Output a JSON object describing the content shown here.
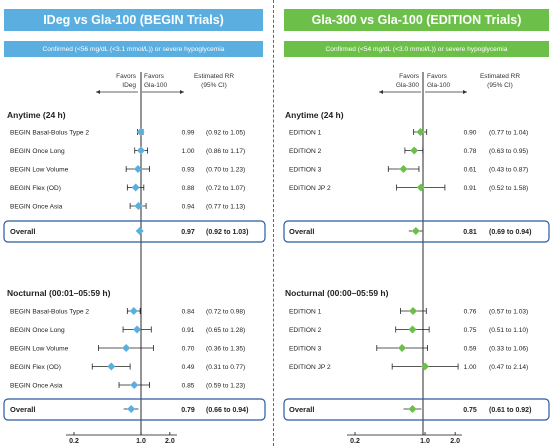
{
  "colors": {
    "left_accent": "#5aaee0",
    "right_accent": "#6cc04a",
    "box": "#2a5aa0"
  },
  "chart_data": [
    {
      "type": "forest",
      "title": "IDeg vs Gla-100 (BEGIN Trials)",
      "subtitle": "Confirmed (<56 mg/dL (<3.1 mmol/L)) or severe hypoglycemia",
      "favors_left": "Favors IDeg",
      "favors_right": "Favors Gla-100",
      "rr_header": "Estimated RR (95% CI)",
      "x_scale": "log",
      "x_ticks": [
        0.2,
        1.0,
        2.0
      ],
      "x_tick_labels": [
        "0.2",
        "1.0",
        "2.0"
      ],
      "marker_shape": "diamond",
      "marker_color": "#5aaee0",
      "sections": [
        {
          "label": "Anytime (24 h)",
          "rows": [
            {
              "label": "BEGIN Basal-Bolus Type 2",
              "rr": 0.99,
              "lo": 0.92,
              "hi": 1.05,
              "text": "0.99",
              "ci": "(0.92 to 1.05)"
            },
            {
              "label": "BEGIN Once Long",
              "rr": 1.0,
              "lo": 0.86,
              "hi": 1.17,
              "text": "1.00",
              "ci": "(0.86 to 1.17)"
            },
            {
              "label": "BEGIN Low Volume",
              "rr": 0.93,
              "lo": 0.7,
              "hi": 1.23,
              "text": "0.93",
              "ci": "(0.70 to 1.23)"
            },
            {
              "label": "BEGIN Flex (OD)",
              "rr": 0.88,
              "lo": 0.72,
              "hi": 1.07,
              "text": "0.88",
              "ci": "(0.72 to 1.07)"
            },
            {
              "label": "BEGIN Once Asia",
              "rr": 0.94,
              "lo": 0.77,
              "hi": 1.13,
              "text": "0.94",
              "ci": "(0.77 to 1.13)"
            }
          ],
          "overall": {
            "label": "Overall",
            "rr": 0.97,
            "lo": 0.92,
            "hi": 1.03,
            "text": "0.97",
            "ci": "(0.92 to 1.03)"
          }
        },
        {
          "label": "Nocturnal (00:01–05:59 h)",
          "rows": [
            {
              "label": "BEGIN Basal-Bolus Type 2",
              "rr": 0.84,
              "lo": 0.72,
              "hi": 0.98,
              "text": "0.84",
              "ci": "(0.72 to 0.98)"
            },
            {
              "label": "BEGIN Once Long",
              "rr": 0.91,
              "lo": 0.65,
              "hi": 1.28,
              "text": "0.91",
              "ci": "(0.65 to 1.28)"
            },
            {
              "label": "BEGIN Low Volume",
              "rr": 0.7,
              "lo": 0.36,
              "hi": 1.35,
              "text": "0.70",
              "ci": "(0.36 to 1.35)"
            },
            {
              "label": "BEGIN Flex (OD)",
              "rr": 0.49,
              "lo": 0.31,
              "hi": 0.77,
              "text": "0.49",
              "ci": "(0.31 to 0.77)"
            },
            {
              "label": "BEGIN Once Asia",
              "rr": 0.85,
              "lo": 0.59,
              "hi": 1.23,
              "text": "0.85",
              "ci": "(0.59 to 1.23)"
            }
          ],
          "overall": {
            "label": "Overall",
            "rr": 0.79,
            "lo": 0.66,
            "hi": 0.94,
            "text": "0.79",
            "ci": "(0.66 to 0.94)"
          }
        }
      ]
    },
    {
      "type": "forest",
      "title": "Gla-300 vs Gla-100 (EDITION Trials)",
      "subtitle": "Confirmed (<54 mg/dL (<3.0 mmol/L)) or severe hypoglycemia",
      "favors_left": "Favors Gla-300",
      "favors_right": "Favors Gla-100",
      "rr_header": "Estimated RR (95% CI)",
      "x_scale": "log",
      "x_ticks": [
        0.2,
        1.0,
        2.0
      ],
      "x_tick_labels": [
        "0.2",
        "1.0",
        "2.0"
      ],
      "marker_shape": "diamond",
      "marker_color": "#6cc04a",
      "sections": [
        {
          "label": "Anytime (24 h)",
          "rows": [
            {
              "label": "EDITION 1",
              "rr": 0.9,
              "lo": 0.77,
              "hi": 1.04,
              "text": "0.90",
              "ci": "(0.77 to 1.04)"
            },
            {
              "label": "EDITION 2",
              "rr": 0.78,
              "lo": 0.63,
              "hi": 0.95,
              "text": "0.78",
              "ci": "(0.63 to 0.95)"
            },
            {
              "label": "EDITION 3",
              "rr": 0.61,
              "lo": 0.43,
              "hi": 0.87,
              "text": "0.61",
              "ci": "(0.43 to 0.87)"
            },
            {
              "label": "EDITION JP 2",
              "rr": 0.91,
              "lo": 0.52,
              "hi": 1.58,
              "text": "0.91",
              "ci": "(0.52 to 1.58)"
            },
            {
              "label": "",
              "rr": null,
              "lo": null,
              "hi": null,
              "text": "",
              "ci": ""
            }
          ],
          "overall": {
            "label": "Overall",
            "rr": 0.81,
            "lo": 0.69,
            "hi": 0.94,
            "text": "0.81",
            "ci": "(0.69 to 0.94)"
          }
        },
        {
          "label": "Nocturnal (00:00–05:59 h)",
          "rows": [
            {
              "label": "EDITION 1",
              "rr": 0.76,
              "lo": 0.57,
              "hi": 1.03,
              "text": "0.76",
              "ci": "(0.57 to 1.03)"
            },
            {
              "label": "EDITION 2",
              "rr": 0.75,
              "lo": 0.51,
              "hi": 1.1,
              "text": "0.75",
              "ci": "(0.51 to 1.10)"
            },
            {
              "label": "EDITION 3",
              "rr": 0.59,
              "lo": 0.33,
              "hi": 1.06,
              "text": "0.59",
              "ci": "(0.33 to 1.06)"
            },
            {
              "label": "EDITION JP 2",
              "rr": 1.0,
              "lo": 0.47,
              "hi": 2.14,
              "text": "1.00",
              "ci": "(0.47 to 2.14)"
            },
            {
              "label": "",
              "rr": null,
              "lo": null,
              "hi": null,
              "text": "",
              "ci": ""
            }
          ],
          "overall": {
            "label": "Overall",
            "rr": 0.75,
            "lo": 0.61,
            "hi": 0.92,
            "text": "0.75",
            "ci": "(0.61 to 0.92)"
          }
        }
      ]
    }
  ]
}
